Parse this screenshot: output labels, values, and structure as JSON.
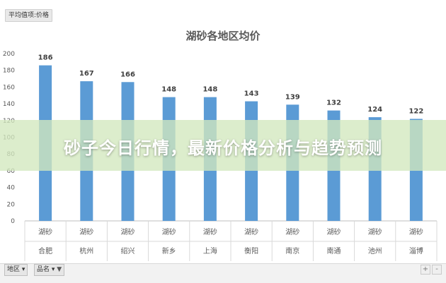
{
  "pivot_field_button": "平均值项:价格",
  "banner_text": "砂子今日行情，最新价格分析与趋势预测",
  "filters": {
    "region_label": "地区",
    "product_label": "品名"
  },
  "zoom": {
    "plus": "+",
    "minus": "-"
  },
  "colors": {
    "bar": "#5b9bd5",
    "banner": "#d2e8be",
    "grid": "#d9d9d9"
  },
  "chart_data": {
    "type": "bar",
    "title": "湖砂各地区均价",
    "xlabel": "",
    "ylabel": "",
    "ylim": [
      0,
      200
    ],
    "yticks": [
      0,
      20,
      40,
      60,
      80,
      100,
      120,
      140,
      160,
      180,
      200
    ],
    "grid": false,
    "categories": [
      [
        "湖砂",
        "合肥"
      ],
      [
        "湖砂",
        "杭州"
      ],
      [
        "湖砂",
        "绍兴"
      ],
      [
        "湖砂",
        "新乡"
      ],
      [
        "湖砂",
        "上海"
      ],
      [
        "湖砂",
        "衡阳"
      ],
      [
        "湖砂",
        "南京"
      ],
      [
        "湖砂",
        "南通"
      ],
      [
        "湖砂",
        "池州"
      ],
      [
        "湖砂",
        "淄博"
      ]
    ],
    "values": [
      186,
      167,
      166,
      148,
      148,
      143,
      139,
      132,
      124,
      122
    ]
  }
}
